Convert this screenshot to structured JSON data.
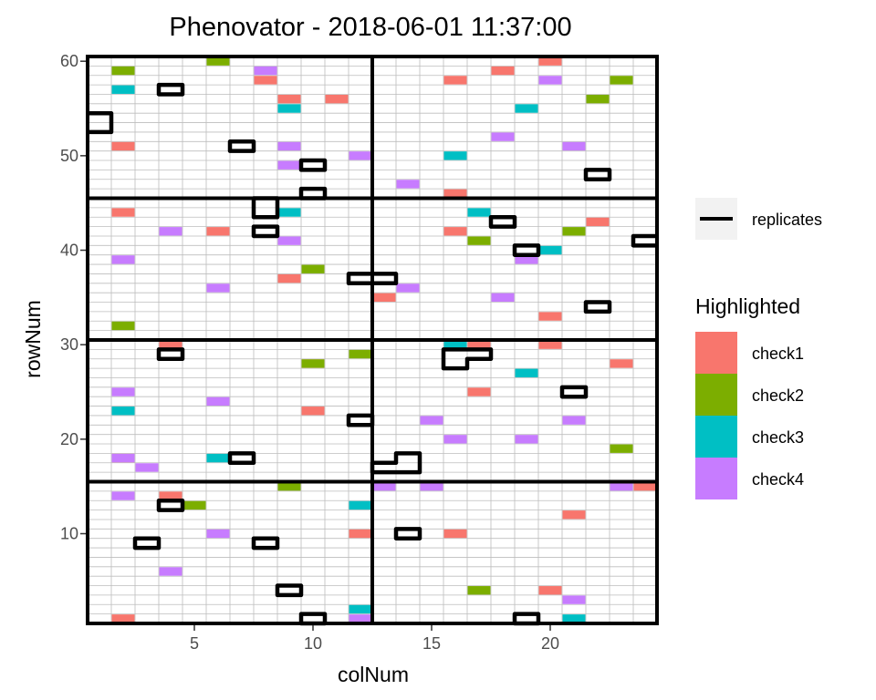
{
  "chart_data": {
    "type": "heatmap",
    "title": "Phenovator - 2018-06-01 11:37:00",
    "xlabel": "colNum",
    "ylabel": "rowNum",
    "xlim": [
      0.5,
      24.5
    ],
    "ylim": [
      0.5,
      60.5
    ],
    "x_ticks": [
      5,
      10,
      15,
      20
    ],
    "y_ticks": [
      10,
      20,
      30,
      40,
      50,
      60
    ],
    "grid": true,
    "legend": {
      "position": "right",
      "line_legend_label": "replicates",
      "fill_title": "Highlighted"
    },
    "series": [
      {
        "name": "check1",
        "color": "#F8766D",
        "points": [
          [
            20,
            60
          ],
          [
            18,
            59
          ],
          [
            8,
            58
          ],
          [
            16,
            58
          ],
          [
            9,
            56
          ],
          [
            11,
            56
          ],
          [
            2,
            51
          ],
          [
            16,
            46
          ],
          [
            2,
            44
          ],
          [
            22,
            43
          ],
          [
            6,
            42
          ],
          [
            16,
            42
          ],
          [
            9,
            37
          ],
          [
            13,
            35
          ],
          [
            20,
            33
          ],
          [
            4,
            30
          ],
          [
            17,
            30
          ],
          [
            20,
            30
          ],
          [
            10,
            28
          ],
          [
            23,
            28
          ],
          [
            17,
            25
          ],
          [
            10,
            23
          ],
          [
            2,
            18
          ],
          [
            4,
            14
          ],
          [
            24,
            15
          ],
          [
            21,
            12
          ],
          [
            12,
            10
          ],
          [
            16,
            10
          ],
          [
            20,
            4
          ],
          [
            2,
            1
          ]
        ]
      },
      {
        "name": "check2",
        "color": "#7CAE00",
        "points": [
          [
            6,
            60
          ],
          [
            2,
            59
          ],
          [
            23,
            58
          ],
          [
            22,
            56
          ],
          [
            21,
            42
          ],
          [
            17,
            41
          ],
          [
            10,
            38
          ],
          [
            2,
            32
          ],
          [
            12,
            29
          ],
          [
            10,
            28
          ],
          [
            23,
            19
          ],
          [
            9,
            15
          ],
          [
            5,
            13
          ],
          [
            17,
            4
          ]
        ]
      },
      {
        "name": "check3",
        "color": "#00BFC4",
        "points": [
          [
            2,
            57
          ],
          [
            9,
            55
          ],
          [
            19,
            55
          ],
          [
            16,
            50
          ],
          [
            9,
            44
          ],
          [
            17,
            44
          ],
          [
            20,
            40
          ],
          [
            16,
            30
          ],
          [
            19,
            27
          ],
          [
            2,
            23
          ],
          [
            6,
            18
          ],
          [
            12,
            13
          ],
          [
            12,
            2
          ],
          [
            21,
            1
          ]
        ]
      },
      {
        "name": "check4",
        "color": "#C77CFF",
        "points": [
          [
            8,
            59
          ],
          [
            20,
            58
          ],
          [
            18,
            52
          ],
          [
            9,
            51
          ],
          [
            21,
            51
          ],
          [
            9,
            49
          ],
          [
            12,
            50
          ],
          [
            14,
            47
          ],
          [
            4,
            42
          ],
          [
            9,
            41
          ],
          [
            2,
            39
          ],
          [
            19,
            39
          ],
          [
            6,
            36
          ],
          [
            14,
            36
          ],
          [
            18,
            35
          ],
          [
            2,
            25
          ],
          [
            6,
            24
          ],
          [
            15,
            22
          ],
          [
            21,
            22
          ],
          [
            16,
            20
          ],
          [
            19,
            20
          ],
          [
            2,
            18
          ],
          [
            3,
            17
          ],
          [
            2,
            14
          ],
          [
            13,
            15
          ],
          [
            15,
            15
          ],
          [
            23,
            15
          ],
          [
            6,
            10
          ],
          [
            4,
            6
          ],
          [
            21,
            3
          ],
          [
            12,
            1
          ]
        ]
      }
    ],
    "replicate_outlines": [
      [
        [
          4,
          57
        ]
      ],
      [
        [
          7,
          51
        ]
      ],
      [
        [
          10,
          49
        ]
      ],
      [
        [
          10,
          46
        ]
      ],
      [
        [
          22,
          48
        ]
      ],
      [
        [
          8,
          42
        ]
      ],
      [
        [
          18,
          43
        ]
      ],
      [
        [
          19,
          40
        ]
      ],
      [
        [
          22,
          34
        ]
      ],
      [
        [
          8,
          44
        ],
        [
          8,
          45
        ]
      ],
      [
        [
          12,
          37
        ],
        [
          13,
          37
        ]
      ],
      [
        [
          4,
          29
        ]
      ],
      [
        [
          16,
          29
        ],
        [
          17,
          29
        ],
        [
          16,
          28
        ]
      ],
      [
        [
          21,
          25
        ]
      ],
      [
        [
          12,
          22
        ]
      ],
      [
        [
          7,
          18
        ]
      ],
      [
        [
          13,
          17
        ],
        [
          14,
          17
        ],
        [
          14,
          18
        ]
      ],
      [
        [
          4,
          13
        ]
      ],
      [
        [
          14,
          10
        ]
      ],
      [
        [
          3,
          9
        ]
      ],
      [
        [
          8,
          9
        ]
      ],
      [
        [
          9,
          4
        ]
      ],
      [
        [
          10,
          1
        ]
      ],
      [
        [
          19,
          1
        ]
      ]
    ],
    "edge_bumps": [
      {
        "side": "left",
        "rows": [
          54,
          53
        ]
      },
      {
        "side": "right",
        "rows": [
          41
        ]
      }
    ],
    "block_lines": {
      "x": [
        12.5
      ],
      "y": [
        15.5,
        30.5,
        45.5
      ]
    }
  }
}
